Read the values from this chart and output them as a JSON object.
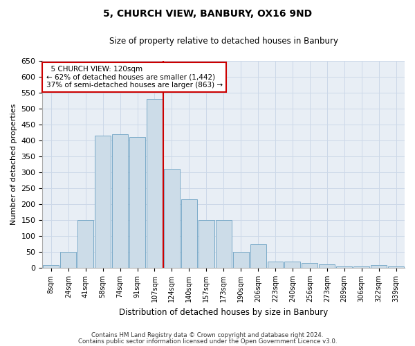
{
  "title": "5, CHURCH VIEW, BANBURY, OX16 9ND",
  "subtitle": "Size of property relative to detached houses in Banbury",
  "xlabel": "Distribution of detached houses by size in Banbury",
  "ylabel": "Number of detached properties",
  "property_label": "5 CHURCH VIEW: 120sqm",
  "pct_smaller": 62,
  "count_smaller": 1442,
  "pct_larger_semi": 37,
  "count_larger_semi": 863,
  "bar_color": "#ccdce8",
  "bar_edge_color": "#7aaac8",
  "vline_color": "#cc0000",
  "categories": [
    "8sqm",
    "24sqm",
    "41sqm",
    "58sqm",
    "74sqm",
    "91sqm",
    "107sqm",
    "124sqm",
    "140sqm",
    "157sqm",
    "173sqm",
    "190sqm",
    "206sqm",
    "223sqm",
    "240sqm",
    "256sqm",
    "273sqm",
    "289sqm",
    "306sqm",
    "322sqm",
    "339sqm"
  ],
  "values": [
    8,
    50,
    150,
    415,
    420,
    410,
    530,
    310,
    215,
    150,
    150,
    50,
    75,
    20,
    20,
    15,
    10,
    5,
    5,
    8,
    5
  ],
  "ylim": [
    0,
    650
  ],
  "yticks": [
    0,
    50,
    100,
    150,
    200,
    250,
    300,
    350,
    400,
    450,
    500,
    550,
    600,
    650
  ],
  "grid_color": "#ccd8e8",
  "background_color": "#e8eef5",
  "footer1": "Contains HM Land Registry data © Crown copyright and database right 2024.",
  "footer2": "Contains public sector information licensed under the Open Government Licence v3.0."
}
